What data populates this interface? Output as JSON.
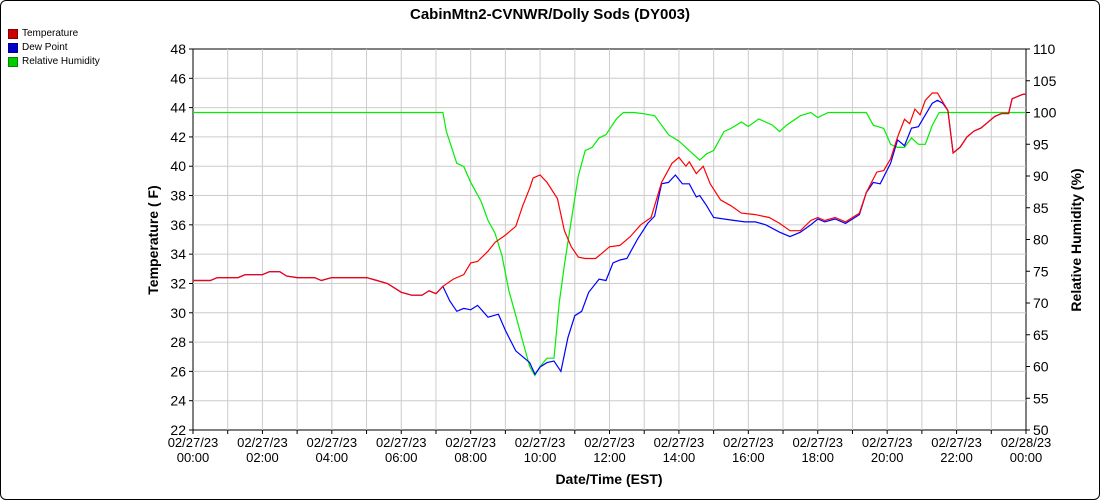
{
  "chart_data": {
    "type": "line",
    "title": "CabinMtn2-CVNWR/Dolly Sods (DY003)",
    "xlabel": "Date/Time (EST)",
    "ylabel": "Temperature ( F)",
    "y2label": "Relative Humidity (%)",
    "xlim": [
      0,
      24
    ],
    "ylim": [
      22,
      48
    ],
    "y2lim": [
      50,
      110
    ],
    "x_ticks": [
      {
        "date": "02/27/23",
        "time": "00:00"
      },
      {
        "date": "02/27/23",
        "time": "02:00"
      },
      {
        "date": "02/27/23",
        "time": "04:00"
      },
      {
        "date": "02/27/23",
        "time": "06:00"
      },
      {
        "date": "02/27/23",
        "time": "08:00"
      },
      {
        "date": "02/27/23",
        "time": "10:00"
      },
      {
        "date": "02/27/23",
        "time": "12:00"
      },
      {
        "date": "02/27/23",
        "time": "14:00"
      },
      {
        "date": "02/27/23",
        "time": "16:00"
      },
      {
        "date": "02/27/23",
        "time": "18:00"
      },
      {
        "date": "02/27/23",
        "time": "20:00"
      },
      {
        "date": "02/27/23",
        "time": "22:00"
      },
      {
        "date": "02/28/23",
        "time": "00:00"
      }
    ],
    "y_ticks": [
      22,
      24,
      26,
      28,
      30,
      32,
      34,
      36,
      38,
      40,
      42,
      44,
      46,
      48
    ],
    "y2_ticks": [
      50,
      55,
      60,
      65,
      70,
      75,
      80,
      85,
      90,
      95,
      100,
      105,
      110
    ],
    "grid": true,
    "legend_position": "top-left",
    "series": [
      {
        "name": "Temperature",
        "color": "#ff0000",
        "axis": "left",
        "points": [
          [
            0,
            32.2
          ],
          [
            0.5,
            32.2
          ],
          [
            0.7,
            32.4
          ],
          [
            1,
            32.4
          ],
          [
            1.3,
            32.4
          ],
          [
            1.5,
            32.6
          ],
          [
            2,
            32.6
          ],
          [
            2.2,
            32.8
          ],
          [
            2.5,
            32.8
          ],
          [
            2.7,
            32.5
          ],
          [
            3,
            32.4
          ],
          [
            3.5,
            32.4
          ],
          [
            3.7,
            32.2
          ],
          [
            4,
            32.4
          ],
          [
            4.5,
            32.4
          ],
          [
            5,
            32.4
          ],
          [
            5.3,
            32.2
          ],
          [
            5.6,
            32
          ],
          [
            6,
            31.4
          ],
          [
            6.3,
            31.2
          ],
          [
            6.6,
            31.2
          ],
          [
            6.8,
            31.5
          ],
          [
            7,
            31.3
          ],
          [
            7.2,
            31.8
          ],
          [
            7.5,
            32.3
          ],
          [
            7.8,
            32.6
          ],
          [
            8,
            33.4
          ],
          [
            8.2,
            33.5
          ],
          [
            8.5,
            34.2
          ],
          [
            8.7,
            34.8
          ],
          [
            9,
            35.3
          ],
          [
            9.3,
            35.9
          ],
          [
            9.5,
            37.3
          ],
          [
            9.7,
            38.5
          ],
          [
            9.8,
            39.2
          ],
          [
            10,
            39.4
          ],
          [
            10.2,
            38.9
          ],
          [
            10.5,
            37.8
          ],
          [
            10.7,
            35.6
          ],
          [
            10.9,
            34.5
          ],
          [
            11.1,
            33.8
          ],
          [
            11.3,
            33.7
          ],
          [
            11.6,
            33.7
          ],
          [
            11.8,
            34.1
          ],
          [
            12,
            34.5
          ],
          [
            12.3,
            34.6
          ],
          [
            12.6,
            35.2
          ],
          [
            12.9,
            36
          ],
          [
            13.2,
            36.5
          ],
          [
            13.5,
            38.9
          ],
          [
            13.8,
            40.2
          ],
          [
            14,
            40.6
          ],
          [
            14.2,
            40
          ],
          [
            14.3,
            40.3
          ],
          [
            14.5,
            39.5
          ],
          [
            14.7,
            40
          ],
          [
            14.9,
            38.8
          ],
          [
            15.2,
            37.7
          ],
          [
            15.5,
            37.3
          ],
          [
            15.8,
            36.8
          ],
          [
            16.2,
            36.7
          ],
          [
            16.6,
            36.5
          ],
          [
            16.9,
            36.1
          ],
          [
            17.2,
            35.6
          ],
          [
            17.5,
            35.6
          ],
          [
            17.8,
            36.3
          ],
          [
            18,
            36.5
          ],
          [
            18.2,
            36.3
          ],
          [
            18.5,
            36.5
          ],
          [
            18.8,
            36.2
          ],
          [
            19.2,
            36.8
          ],
          [
            19.4,
            38.2
          ],
          [
            19.7,
            39.6
          ],
          [
            19.9,
            39.7
          ],
          [
            20.1,
            40.5
          ],
          [
            20.3,
            42
          ],
          [
            20.5,
            43.2
          ],
          [
            20.65,
            42.9
          ],
          [
            20.8,
            43.9
          ],
          [
            20.95,
            43.5
          ],
          [
            21.1,
            44.5
          ],
          [
            21.3,
            45
          ],
          [
            21.45,
            45
          ],
          [
            21.6,
            44.4
          ],
          [
            21.75,
            43.8
          ],
          [
            21.9,
            40.9
          ],
          [
            22.1,
            41.3
          ],
          [
            22.3,
            42
          ],
          [
            22.5,
            42.4
          ],
          [
            22.7,
            42.6
          ],
          [
            22.9,
            43
          ],
          [
            23.1,
            43.4
          ],
          [
            23.3,
            43.6
          ],
          [
            23.5,
            43.6
          ],
          [
            23.6,
            44.6
          ],
          [
            23.9,
            44.9
          ],
          [
            24.2,
            45
          ],
          [
            24.6,
            45
          ],
          [
            24.8,
            44.8
          ],
          [
            25,
            44.8
          ]
        ]
      },
      {
        "name": "Dew Point",
        "color": "#0000ff",
        "axis": "left",
        "points": [
          [
            0,
            32.2
          ],
          [
            0.5,
            32.2
          ],
          [
            0.7,
            32.4
          ],
          [
            1,
            32.4
          ],
          [
            1.3,
            32.4
          ],
          [
            1.5,
            32.6
          ],
          [
            2,
            32.6
          ],
          [
            2.2,
            32.8
          ],
          [
            2.5,
            32.8
          ],
          [
            2.7,
            32.5
          ],
          [
            3,
            32.4
          ],
          [
            3.5,
            32.4
          ],
          [
            3.7,
            32.2
          ],
          [
            4,
            32.4
          ],
          [
            4.5,
            32.4
          ],
          [
            5,
            32.4
          ],
          [
            5.3,
            32.2
          ],
          [
            5.6,
            32
          ],
          [
            6,
            31.4
          ],
          [
            6.3,
            31.2
          ],
          [
            6.6,
            31.2
          ],
          [
            6.8,
            31.5
          ],
          [
            7,
            31.3
          ],
          [
            7.2,
            31.8
          ],
          [
            7.4,
            30.8
          ],
          [
            7.6,
            30.1
          ],
          [
            7.8,
            30.3
          ],
          [
            8,
            30.2
          ],
          [
            8.2,
            30.5
          ],
          [
            8.5,
            29.7
          ],
          [
            8.8,
            29.9
          ],
          [
            9,
            28.8
          ],
          [
            9.3,
            27.4
          ],
          [
            9.5,
            27
          ],
          [
            9.7,
            26.6
          ],
          [
            9.85,
            25.8
          ],
          [
            10,
            26.3
          ],
          [
            10.2,
            26.6
          ],
          [
            10.4,
            26.7
          ],
          [
            10.6,
            26
          ],
          [
            10.8,
            28.3
          ],
          [
            11,
            29.8
          ],
          [
            11.2,
            30.1
          ],
          [
            11.4,
            31.4
          ],
          [
            11.7,
            32.3
          ],
          [
            11.9,
            32.2
          ],
          [
            12.1,
            33.4
          ],
          [
            12.3,
            33.6
          ],
          [
            12.5,
            33.7
          ],
          [
            12.8,
            35
          ],
          [
            13.1,
            36.1
          ],
          [
            13.3,
            36.6
          ],
          [
            13.5,
            38.8
          ],
          [
            13.7,
            38.9
          ],
          [
            13.9,
            39.4
          ],
          [
            14.1,
            38.8
          ],
          [
            14.3,
            38.8
          ],
          [
            14.5,
            37.9
          ],
          [
            14.6,
            38
          ],
          [
            14.8,
            37.3
          ],
          [
            15,
            36.5
          ],
          [
            15.3,
            36.4
          ],
          [
            15.6,
            36.3
          ],
          [
            15.9,
            36.2
          ],
          [
            16.2,
            36.2
          ],
          [
            16.5,
            36
          ],
          [
            16.9,
            35.5
          ],
          [
            17.2,
            35.2
          ],
          [
            17.5,
            35.5
          ],
          [
            17.8,
            36
          ],
          [
            18,
            36.4
          ],
          [
            18.2,
            36.2
          ],
          [
            18.5,
            36.4
          ],
          [
            18.8,
            36.1
          ],
          [
            19.2,
            36.7
          ],
          [
            19.4,
            38.2
          ],
          [
            19.6,
            38.9
          ],
          [
            19.8,
            38.8
          ],
          [
            20.1,
            40.2
          ],
          [
            20.3,
            41.8
          ],
          [
            20.5,
            41.4
          ],
          [
            20.7,
            42.6
          ],
          [
            20.9,
            42.7
          ],
          [
            21.1,
            43.5
          ],
          [
            21.3,
            44.3
          ],
          [
            21.45,
            44.5
          ],
          [
            21.6,
            44.3
          ],
          [
            21.75,
            43.8
          ],
          [
            21.9,
            40.9
          ],
          [
            22.1,
            41.3
          ],
          [
            22.3,
            42
          ],
          [
            22.5,
            42.4
          ],
          [
            22.7,
            42.6
          ],
          [
            22.9,
            43
          ],
          [
            23.1,
            43.4
          ],
          [
            23.3,
            43.6
          ],
          [
            23.5,
            43.6
          ],
          [
            23.6,
            44.6
          ],
          [
            23.9,
            44.9
          ],
          [
            24.2,
            45
          ],
          [
            24.6,
            45
          ],
          [
            24.8,
            44.8
          ],
          [
            25,
            44.8
          ]
        ]
      },
      {
        "name": "Relative Humidity",
        "color": "#00ee00",
        "axis": "right",
        "points": [
          [
            0,
            100
          ],
          [
            1,
            100
          ],
          [
            2,
            100
          ],
          [
            3,
            100
          ],
          [
            4,
            100
          ],
          [
            5,
            100
          ],
          [
            6,
            100
          ],
          [
            7.2,
            100
          ],
          [
            7.3,
            97
          ],
          [
            7.6,
            92
          ],
          [
            7.8,
            91.5
          ],
          [
            8,
            89
          ],
          [
            8.3,
            86
          ],
          [
            8.5,
            83
          ],
          [
            8.7,
            81
          ],
          [
            8.9,
            77.5
          ],
          [
            9.1,
            72
          ],
          [
            9.3,
            68
          ],
          [
            9.5,
            64
          ],
          [
            9.7,
            60
          ],
          [
            9.85,
            58.6
          ],
          [
            10,
            60
          ],
          [
            10.2,
            61.3
          ],
          [
            10.4,
            61.3
          ],
          [
            10.55,
            70
          ],
          [
            10.7,
            76
          ],
          [
            10.9,
            83
          ],
          [
            11.1,
            90
          ],
          [
            11.3,
            94
          ],
          [
            11.5,
            94.5
          ],
          [
            11.7,
            96
          ],
          [
            11.9,
            96.5
          ],
          [
            12.2,
            99
          ],
          [
            12.4,
            100
          ],
          [
            12.7,
            100
          ],
          [
            13,
            99.8
          ],
          [
            13.3,
            99.5
          ],
          [
            13.5,
            98
          ],
          [
            13.7,
            96.5
          ],
          [
            14,
            95.5
          ],
          [
            14.3,
            94
          ],
          [
            14.6,
            92.5
          ],
          [
            14.8,
            93.5
          ],
          [
            15,
            94
          ],
          [
            15.3,
            97
          ],
          [
            15.5,
            97.5
          ],
          [
            15.8,
            98.5
          ],
          [
            16,
            97.8
          ],
          [
            16.3,
            99
          ],
          [
            16.7,
            98
          ],
          [
            16.9,
            97
          ],
          [
            17.1,
            98
          ],
          [
            17.5,
            99.5
          ],
          [
            17.8,
            100
          ],
          [
            18,
            99.2
          ],
          [
            18.3,
            100
          ],
          [
            18.6,
            100
          ],
          [
            19,
            100
          ],
          [
            19.4,
            100
          ],
          [
            19.6,
            98
          ],
          [
            19.9,
            97.5
          ],
          [
            20.1,
            95
          ],
          [
            20.3,
            94.5
          ],
          [
            20.5,
            94.5
          ],
          [
            20.7,
            96
          ],
          [
            20.9,
            95
          ],
          [
            21.1,
            95
          ],
          [
            21.3,
            98
          ],
          [
            21.5,
            100
          ],
          [
            21.8,
            100
          ],
          [
            22.2,
            100
          ],
          [
            22.6,
            100
          ],
          [
            23,
            100
          ],
          [
            23.5,
            100
          ],
          [
            24,
            100
          ],
          [
            24.5,
            100
          ],
          [
            25,
            100
          ]
        ]
      }
    ]
  }
}
